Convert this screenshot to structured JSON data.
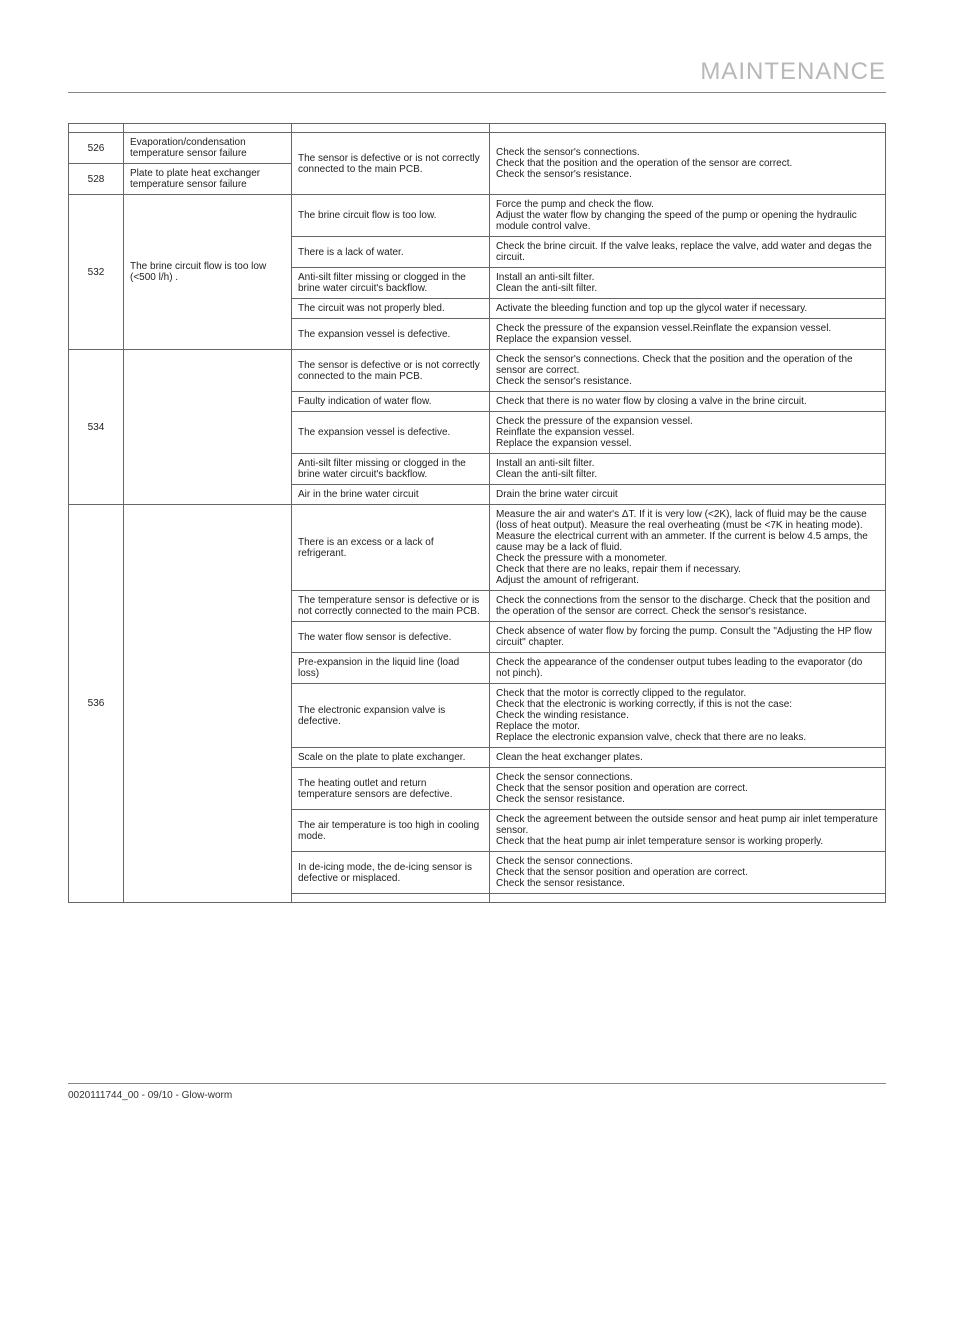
{
  "header": {
    "title": "MAINTENANCE"
  },
  "footer": {
    "ref": "0020111744_00 - 09/10 - Glow-worm"
  },
  "rows": [
    {
      "code": "526",
      "fault": "Evaporation/condensation temperature sensor failure",
      "fault_rowspan": 1,
      "code_rowspan": 1,
      "cause_rowspan": 2,
      "fix_rowspan": 2,
      "cause": "The sensor is defective or is not correctly connected to the main PCB.",
      "fix": "Check the sensor's connections.\nCheck that the position and the operation of the sensor are correct.\nCheck the sensor's resistance."
    },
    {
      "code": "528",
      "fault": "Plate to plate heat exchanger temperature sensor failure",
      "fault_rowspan": 1,
      "code_rowspan": 1
    },
    {
      "code": "532",
      "fault": "The brine circuit flow is too low (<500 l/h) .",
      "code_rowspan": 5,
      "fault_rowspan": 5,
      "cause": "The brine circuit flow is too low.",
      "fix": "Force the pump and check the flow.\nAdjust the water flow by changing the speed of the pump or opening the hydraulic module control valve."
    },
    {
      "cause": "There is a lack of water.",
      "fix": "Check the brine circuit. If the valve leaks, replace the valve, add water and degas the circuit."
    },
    {
      "cause": "Anti-silt filter missing or clogged in the brine water circuit's backflow.",
      "fix": "Install an anti-silt filter.\nClean the anti-silt filter."
    },
    {
      "cause": "The circuit was not properly bled.",
      "fix": "Activate the bleeding function and top up the glycol water if necessary."
    },
    {
      "cause": "The expansion vessel is defective.",
      "fix": "Check the pressure of the expansion vessel.Reinflate the expansion vessel.\nReplace the expansion vessel."
    },
    {
      "code": "534",
      "fault": "",
      "code_rowspan": 5,
      "fault_rowspan": 5,
      "cause": "The sensor is defective or is not correctly connected to the main PCB.",
      "fix": "Check the sensor's connections. Check that the position and the operation of the sensor are correct.\nCheck the sensor's resistance."
    },
    {
      "cause": "Faulty indication of water flow.",
      "fix": "Check that there is no water flow by closing a valve in the brine circuit."
    },
    {
      "cause": "The expansion vessel is defective.",
      "fix": "Check the pressure of the expansion vessel.\nReinflate the expansion vessel.\nReplace the expansion vessel."
    },
    {
      "cause": "Anti-silt filter missing or clogged in the brine water circuit's backflow.",
      "fix": "Install an anti-silt filter.\nClean the anti-silt filter."
    },
    {
      "cause": "Air in the brine water circuit",
      "fix": "Drain the brine water circuit"
    },
    {
      "code": "536",
      "fault": "",
      "code_rowspan": 10,
      "fault_rowspan": 10,
      "cause": "There is an excess or a lack of refrigerant.",
      "fix": "Measure the air and water's ΔT. If it is very low (<2K), lack of fluid may be the cause (loss of heat output). Measure the real overheating (must be <7K in heating mode). Measure the electrical current with an ammeter. If the current is below 4.5 amps, the cause may be a lack of fluid.\nCheck the pressure with a monometer.\nCheck that there are no leaks, repair them if necessary.\nAdjust the amount of refrigerant."
    },
    {
      "cause": "The temperature sensor is defective or is not correctly connected to the main PCB.",
      "fix": "Check the connections from the sensor to the discharge. Check that the position and the operation of the sensor are correct. Check the sensor's resistance."
    },
    {
      "cause": "The water flow sensor is defective.",
      "fix": "Check absence of water flow by forcing the pump. Consult the \"Adjusting the HP flow circuit\" chapter."
    },
    {
      "cause": "Pre-expansion in the liquid line (load loss)",
      "fix": "Check the appearance of the condenser output tubes leading to the evaporator (do not pinch)."
    },
    {
      "cause": "The electronic expansion valve is defective.",
      "fix": "Check that the motor is correctly clipped to the regulator.\nCheck that the electronic is working correctly, if this is not the case:\nCheck the winding resistance.\nReplace the motor.\nReplace the electronic expansion valve, check that there are no leaks."
    },
    {
      "cause": "Scale on the plate to plate exchanger.",
      "fix": "Clean the heat exchanger plates."
    },
    {
      "cause": "The heating outlet and return temperature sensors are defective.",
      "fix": "Check the sensor connections.\nCheck that the sensor position and operation are correct.\nCheck the sensor resistance."
    },
    {
      "cause": "The air temperature is too high in cooling mode.",
      "fix": "Check the agreement between the outside sensor and heat pump air inlet temperature sensor.\nCheck that the heat pump air inlet temperature sensor is working properly."
    },
    {
      "cause": "In de-icing mode, the de-icing sensor is defective or misplaced.",
      "fix": "Check the sensor connections.\nCheck that the sensor position and operation are correct.\nCheck the sensor resistance."
    }
  ]
}
